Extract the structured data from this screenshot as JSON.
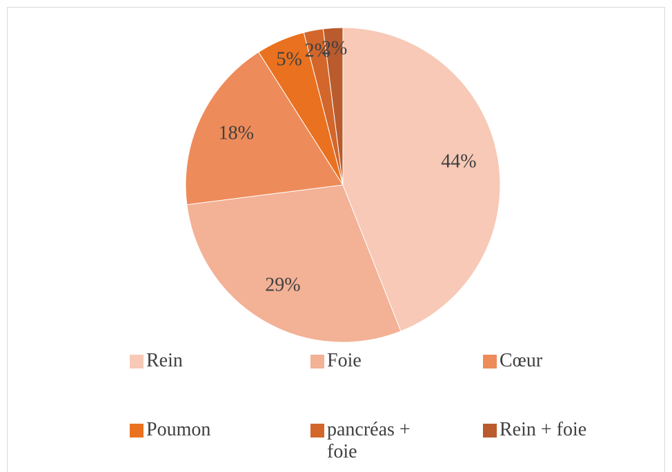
{
  "chart_data": {
    "type": "pie",
    "categories": [
      "Rein",
      "Foie",
      "Cœur",
      "Poumon",
      "pancréas + foie",
      "Rein + foie"
    ],
    "values": [
      44,
      29,
      18,
      5,
      2,
      2
    ],
    "value_labels": [
      "44%",
      "29%",
      "18%",
      "5%",
      "2%",
      "2%"
    ],
    "colors": [
      "#f7c9b6",
      "#f3b196",
      "#ee8b5a",
      "#e9711f",
      "#d3662a",
      "#b95b2d"
    ],
    "legend": "bottom"
  }
}
